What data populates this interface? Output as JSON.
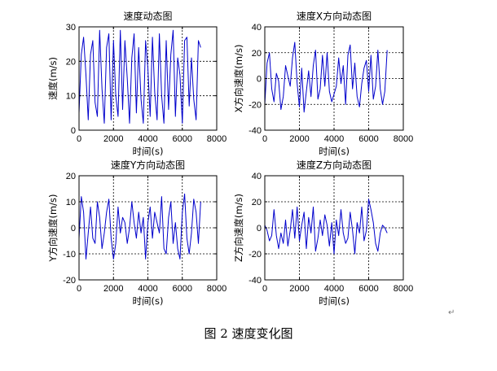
{
  "caption": {
    "label": "图 2  速度变化图",
    "para_mark": "↵"
  },
  "chart_data": [
    {
      "type": "line",
      "title": "速度动态图",
      "xlabel": "时间(s)",
      "ylabel": "速度(m/s)",
      "xlim": [
        0,
        8000
      ],
      "ylim": [
        0,
        30
      ],
      "xticks": [
        0,
        2000,
        4000,
        6000,
        8000
      ],
      "yticks": [
        0,
        10,
        20,
        30
      ],
      "grid": true,
      "line_color": "#0000cc",
      "x": [
        0,
        133,
        266,
        400,
        533,
        666,
        800,
        933,
        1066,
        1200,
        1333,
        1466,
        1600,
        1733,
        1866,
        2000,
        2133,
        2266,
        2400,
        2533,
        2666,
        2800,
        2933,
        3066,
        3200,
        3333,
        3466,
        3600,
        3733,
        3866,
        4000,
        4133,
        4266,
        4400,
        4533,
        4666,
        4800,
        4933,
        5066,
        5200,
        5333,
        5466,
        5600,
        5733,
        5866,
        6000,
        6133,
        6266,
        6400,
        6533,
        6666,
        6800,
        6933,
        7066
      ],
      "values": [
        5,
        22,
        27,
        16,
        3,
        22,
        26,
        8,
        4,
        29,
        12,
        2,
        24,
        28,
        3,
        26,
        10,
        4,
        29,
        6,
        26,
        15,
        2,
        21,
        28,
        5,
        24,
        9,
        2,
        26,
        18,
        4,
        27,
        11,
        3,
        28,
        10,
        2,
        26,
        6,
        22,
        29,
        4,
        21,
        16,
        2,
        26,
        27,
        7,
        21,
        9,
        3,
        26,
        24
      ]
    },
    {
      "type": "line",
      "title": "速度X方向动态图",
      "xlabel": "时间(s)",
      "ylabel": "X方向速度(m/s)",
      "xlim": [
        0,
        8000
      ],
      "ylim": [
        -40,
        40
      ],
      "xticks": [
        0,
        2000,
        4000,
        6000,
        8000
      ],
      "yticks": [
        -40,
        -20,
        0,
        20,
        40
      ],
      "grid": true,
      "line_color": "#0000cc",
      "x": [
        0,
        133,
        266,
        400,
        533,
        666,
        800,
        933,
        1066,
        1200,
        1333,
        1466,
        1600,
        1733,
        1866,
        2000,
        2133,
        2266,
        2400,
        2533,
        2666,
        2800,
        2933,
        3066,
        3200,
        3333,
        3466,
        3600,
        3733,
        3866,
        4000,
        4133,
        4266,
        4400,
        4533,
        4666,
        4800,
        4933,
        5066,
        5200,
        5333,
        5466,
        5600,
        5733,
        5866,
        6000,
        6133,
        6266,
        6400,
        6533,
        6666,
        6800,
        6933,
        7066
      ],
      "values": [
        -20,
        12,
        20,
        -8,
        -18,
        4,
        -2,
        -24,
        -14,
        10,
        2,
        -6,
        16,
        28,
        -4,
        -22,
        8,
        -26,
        -10,
        6,
        -14,
        10,
        22,
        -16,
        -8,
        18,
        -6,
        20,
        -10,
        -18,
        -12,
        -6,
        16,
        -4,
        10,
        -20,
        18,
        26,
        -8,
        12,
        -14,
        -22,
        -4,
        8,
        14,
        -10,
        18,
        -16,
        -6,
        22,
        -8,
        -20,
        -10,
        22
      ]
    },
    {
      "type": "line",
      "title": "速度Y方向动态图",
      "xlabel": "时间(s)",
      "ylabel": "Y方向速度(m/s)",
      "xlim": [
        0,
        8000
      ],
      "ylim": [
        -20,
        20
      ],
      "xticks": [
        0,
        2000,
        4000,
        6000,
        8000
      ],
      "yticks": [
        -20,
        -10,
        0,
        10,
        20
      ],
      "grid": true,
      "line_color": "#0000cc",
      "x": [
        0,
        133,
        266,
        400,
        533,
        666,
        800,
        933,
        1066,
        1200,
        1333,
        1466,
        1600,
        1733,
        1866,
        2000,
        2133,
        2266,
        2400,
        2533,
        2666,
        2800,
        2933,
        3066,
        3200,
        3333,
        3466,
        3600,
        3733,
        3866,
        4000,
        4133,
        4266,
        4400,
        4533,
        4666,
        4800,
        4933,
        5066,
        5200,
        5333,
        5466,
        5600,
        5733,
        5866,
        6000,
        6133,
        6266,
        6400,
        6533,
        6666,
        6800,
        6933,
        7066
      ],
      "values": [
        -4,
        12,
        6,
        -12,
        -2,
        8,
        -4,
        -6,
        10,
        4,
        -8,
        -2,
        6,
        11,
        -4,
        -12,
        -6,
        8,
        -2,
        4,
        2,
        -6,
        0,
        10,
        2,
        -4,
        6,
        -2,
        4,
        -12,
        2,
        8,
        -4,
        6,
        2,
        -2,
        12,
        -8,
        -10,
        4,
        10,
        -6,
        2,
        -8,
        -12,
        6,
        13,
        -4,
        -10,
        -2,
        11,
        6,
        -6,
        10
      ]
    },
    {
      "type": "line",
      "title": "速度Z方向动态图",
      "xlabel": "时间(s)",
      "ylabel": "Z方向速度(m/s)",
      "xlim": [
        0,
        8000
      ],
      "ylim": [
        -40,
        40
      ],
      "xticks": [
        0,
        2000,
        4000,
        6000,
        8000
      ],
      "yticks": [
        -40,
        -20,
        0,
        20,
        40
      ],
      "grid": true,
      "line_color": "#0000cc",
      "x": [
        0,
        133,
        266,
        400,
        533,
        666,
        800,
        933,
        1066,
        1200,
        1333,
        1466,
        1600,
        1733,
        1866,
        2000,
        2133,
        2266,
        2400,
        2533,
        2666,
        2800,
        2933,
        3066,
        3200,
        3333,
        3466,
        3600,
        3733,
        3866,
        4000,
        4133,
        4266,
        4400,
        4533,
        4666,
        4800,
        4933,
        5066,
        5200,
        5333,
        5466,
        5600,
        5733,
        5866,
        6000,
        6133,
        6266,
        6400,
        6533,
        6666,
        6800,
        6933,
        7066
      ],
      "values": [
        2,
        -2,
        -10,
        -6,
        14,
        -6,
        -16,
        -4,
        -12,
        6,
        -14,
        -2,
        14,
        -8,
        16,
        -10,
        2,
        12,
        -16,
        8,
        -4,
        16,
        -18,
        -8,
        6,
        -6,
        10,
        2,
        -14,
        4,
        -20,
        6,
        -6,
        14,
        -4,
        -12,
        -8,
        12,
        -2,
        -20,
        4,
        -4,
        16,
        -10,
        -2,
        22,
        14,
        4,
        -12,
        -18,
        -4,
        2,
        0,
        -4
      ]
    }
  ]
}
